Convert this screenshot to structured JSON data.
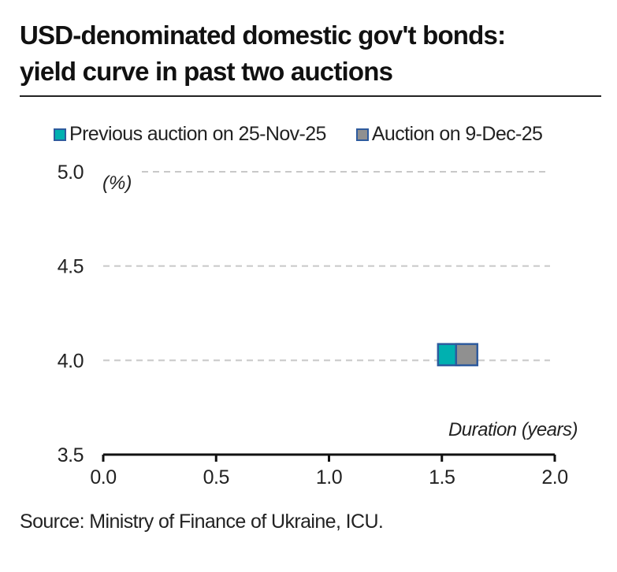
{
  "title": {
    "line1": "USD-denominated domestic gov't bonds:",
    "line2": "yield curve in past two auctions"
  },
  "source": "Source: Ministry of Finance of Ukraine, ICU.",
  "colors": {
    "series1_fill": "#00b0b0",
    "series2_fill": "#909090",
    "marker_border": "#2e5b9e",
    "gridline": "#c8c8c8"
  },
  "chart_data": {
    "type": "scatter",
    "title": "USD-denominated domestic gov't bonds: yield curve in past two auctions",
    "xlabel": "Duration (years)",
    "ylabel": "(%)",
    "xlim": [
      0.0,
      2.0
    ],
    "ylim": [
      3.5,
      5.0
    ],
    "x_ticks": [
      "0.0",
      "0.5",
      "1.0",
      "1.5",
      "2.0"
    ],
    "y_ticks": [
      "5.0",
      "4.5",
      "4.0",
      "3.5"
    ],
    "grid": true,
    "legend_position": "top",
    "series": [
      {
        "name": "Previous auction on 25-Nov-25",
        "x": [
          1.53
        ],
        "y": [
          4.03
        ]
      },
      {
        "name": "Auction on 9-Dec-25",
        "x": [
          1.61
        ],
        "y": [
          4.03
        ]
      }
    ]
  }
}
